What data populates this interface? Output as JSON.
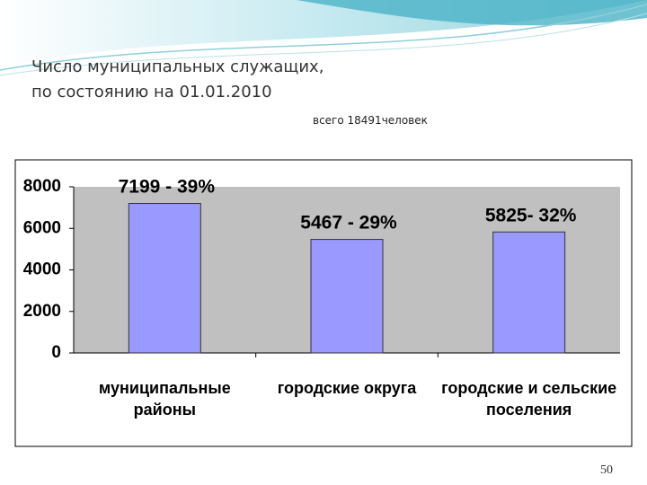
{
  "slide": {
    "title_lines": [
      "Число муниципальных служащих,",
      "по состоянию на 01.01.2010"
    ],
    "subtitle": "всего 18491человек",
    "page_number": "50"
  },
  "chart_data": {
    "type": "bar",
    "categories": [
      "муниципальные\nрайоны",
      "городские округа",
      "городские и сельские\nпоселения"
    ],
    "values": [
      7199,
      5467,
      5825
    ],
    "value_labels": [
      "7199 - 39%",
      "5467 - 29%",
      "5825- 32%"
    ],
    "color": "#9999ff",
    "ylim": [
      0,
      8000
    ],
    "yticks": [
      0,
      2000,
      4000,
      6000,
      8000
    ],
    "grid": false
  }
}
